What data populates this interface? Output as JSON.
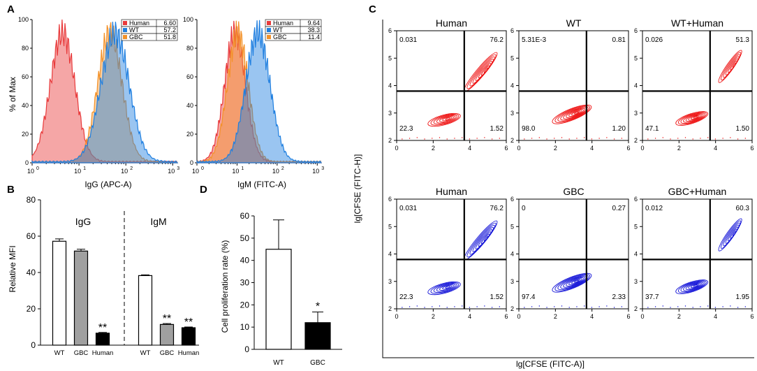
{
  "panel_labels": {
    "a": "A",
    "b": "B",
    "c": "C",
    "d": "D"
  },
  "histograms": [
    {
      "ylabel": "% of Max",
      "xlabel": "IgG (APC-A)",
      "y_ticks": [
        "0",
        "20",
        "40",
        "60",
        "80",
        "100"
      ],
      "x_ticks": [
        "10",
        "10",
        "10",
        "10"
      ],
      "x_exps": [
        "0",
        "1",
        "2",
        "3"
      ],
      "legend": [
        {
          "name": "Human",
          "value": "6.60",
          "color": "#e8393a"
        },
        {
          "name": "WT",
          "value": "57.2",
          "color": "#1f7fe0"
        },
        {
          "name": "GBC",
          "value": "51.8",
          "color": "#f3922a"
        }
      ],
      "peaks_log10": {
        "Human": 0.65,
        "GBC": 1.66,
        "WT": 1.77
      }
    },
    {
      "ylabel": "",
      "xlabel": "IgM (FITC-A)",
      "y_ticks": [
        "0",
        "20",
        "40",
        "60",
        "80",
        "100"
      ],
      "x_ticks": [
        "10",
        "10",
        "10",
        "10"
      ],
      "x_exps": [
        "0",
        "1",
        "2",
        "3"
      ],
      "legend": [
        {
          "name": "Human",
          "value": "9.64",
          "color": "#e8393a"
        },
        {
          "name": "WT",
          "value": "38.3",
          "color": "#1f7fe0"
        },
        {
          "name": "GBC",
          "value": "11.4",
          "color": "#f3922a"
        }
      ],
      "peaks_log10": {
        "Human": 0.95,
        "GBC": 1.02,
        "WT": 1.52
      }
    }
  ],
  "chart_data": [
    {
      "type": "bar",
      "panel": "B",
      "ylabel": "Relative MFI",
      "ylim": [
        0,
        80
      ],
      "y_ticks": [
        "0",
        "20",
        "40",
        "60",
        "80"
      ],
      "groups": [
        {
          "name": "IgG",
          "categories": [
            "WT",
            "GBC",
            "Human"
          ],
          "values": [
            57.2,
            51.8,
            6.6
          ],
          "errors": [
            1.3,
            1.0,
            0.4
          ],
          "marks": [
            "",
            "",
            "**"
          ]
        },
        {
          "name": "IgM",
          "categories": [
            "WT",
            "GBC",
            "Human"
          ],
          "values": [
            38.3,
            11.4,
            9.6
          ],
          "errors": [
            0.4,
            0.5,
            0.4
          ],
          "marks": [
            "",
            "**",
            "**"
          ]
        }
      ]
    },
    {
      "type": "bar",
      "panel": "D",
      "ylabel": "Cell proliferation rate (%)",
      "ylim": [
        0,
        60
      ],
      "y_ticks": [
        "0",
        "10",
        "20",
        "30",
        "40",
        "50",
        "60"
      ],
      "categories": [
        "WT",
        "GBC"
      ],
      "values": [
        45,
        12
      ],
      "errors": [
        13.2,
        4.8
      ],
      "marks": [
        "",
        "*"
      ]
    }
  ],
  "flow": {
    "ylabel": "lg[CFSE (FITC-H)]",
    "xlabel": "lg[CFSE (FITC-A)]",
    "x_ticks": [
      "0",
      "2",
      "4",
      "6"
    ],
    "y_ticks": [
      "2",
      "3",
      "4",
      "5",
      "6"
    ],
    "plots": [
      {
        "title": "Human",
        "color": "#ee1111",
        "q": [
          "0.031",
          "76.2",
          "22.3",
          "1.52"
        ],
        "shape": "diag"
      },
      {
        "title": "WT",
        "color": "#ee1111",
        "q": [
          "5.31E-3",
          "0.81",
          "98.0",
          "1.20"
        ],
        "shape": "low"
      },
      {
        "title": "WT+Human",
        "color": "#ee1111",
        "q": [
          "0.026",
          "51.3",
          "47.1",
          "1.50"
        ],
        "shape": "mix"
      },
      {
        "title": "Human",
        "color": "#1515d8",
        "q": [
          "0.031",
          "76.2",
          "22.3",
          "1.52"
        ],
        "shape": "diag"
      },
      {
        "title": "GBC",
        "color": "#1515d8",
        "q": [
          "0",
          "0.27",
          "97.4",
          "2.33"
        ],
        "shape": "low"
      },
      {
        "title": "GBC+Human",
        "color": "#1515d8",
        "q": [
          "0.012",
          "60.3",
          "37.7",
          "1.95"
        ],
        "shape": "mix"
      }
    ]
  }
}
